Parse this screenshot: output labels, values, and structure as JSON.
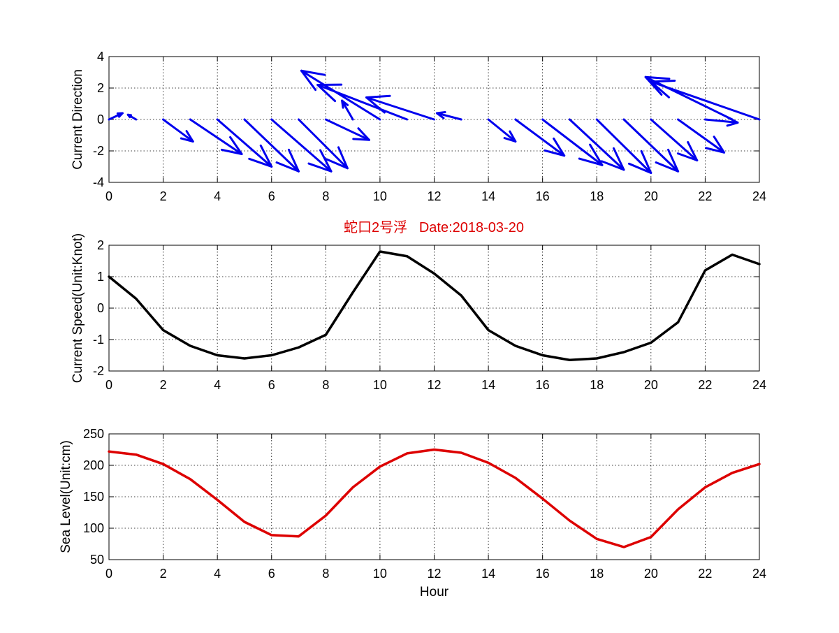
{
  "figure": {
    "title": "蛇口2号浮   Date:2018-03-20",
    "title_color": "#dd0000"
  },
  "chart_data": [
    {
      "type": "quiver",
      "id": "current-direction",
      "ylabel": "Current Direction",
      "xlabel": "",
      "xlim": [
        0,
        24
      ],
      "ylim": [
        -4,
        4
      ],
      "xticks": [
        0,
        2,
        4,
        6,
        8,
        10,
        12,
        14,
        16,
        18,
        20,
        22,
        24
      ],
      "yticks": [
        -4,
        -2,
        0,
        2,
        4
      ],
      "grid": true,
      "color": "#0000ee",
      "vectors": [
        {
          "x": 0,
          "u": 0.5,
          "v": 0.4
        },
        {
          "x": 1,
          "u": -0.3,
          "v": 0.3
        },
        {
          "x": 2,
          "u": 1.1,
          "v": -1.4
        },
        {
          "x": 3,
          "u": 1.9,
          "v": -2.2
        },
        {
          "x": 4,
          "u": 2.0,
          "v": -3.0
        },
        {
          "x": 5,
          "u": 2.0,
          "v": -3.3
        },
        {
          "x": 6,
          "u": 2.2,
          "v": -3.3
        },
        {
          "x": 7,
          "u": 1.8,
          "v": -3.1
        },
        {
          "x": 8,
          "u": 1.6,
          "v": -1.3
        },
        {
          "x": 9,
          "u": -0.4,
          "v": 1.2
        },
        {
          "x": 10,
          "u": -2.9,
          "v": 3.1
        },
        {
          "x": 11,
          "u": -3.3,
          "v": 2.2
        },
        {
          "x": 12,
          "u": -2.5,
          "v": 1.4
        },
        {
          "x": 13,
          "u": -0.9,
          "v": 0.4
        },
        {
          "x": 14,
          "u": 1.0,
          "v": -1.4
        },
        {
          "x": 15,
          "u": 1.8,
          "v": -2.3
        },
        {
          "x": 16,
          "u": 2.2,
          "v": -2.9
        },
        {
          "x": 17,
          "u": 2.0,
          "v": -3.2
        },
        {
          "x": 18,
          "u": 2.0,
          "v": -3.4
        },
        {
          "x": 19,
          "u": 2.0,
          "v": -3.3
        },
        {
          "x": 20,
          "u": 1.7,
          "v": -2.6
        },
        {
          "x": 21,
          "u": 1.7,
          "v": -2.1
        },
        {
          "x": 22,
          "u": 1.2,
          "v": -0.2
        },
        {
          "x": 23,
          "u": -3.2,
          "v": 2.7
        },
        {
          "x": 24,
          "u": -4.0,
          "v": 2.4
        }
      ]
    },
    {
      "type": "line",
      "id": "current-speed",
      "ylabel": "Current Speed(Unit:Knot)",
      "xlabel": "",
      "xlim": [
        0,
        24
      ],
      "ylim": [
        -2,
        2
      ],
      "xticks": [
        0,
        2,
        4,
        6,
        8,
        10,
        12,
        14,
        16,
        18,
        20,
        22,
        24
      ],
      "yticks": [
        -2,
        -1,
        0,
        1,
        2
      ],
      "grid": true,
      "color": "#000000",
      "x": [
        0,
        1,
        2,
        3,
        4,
        5,
        6,
        7,
        8,
        9,
        10,
        11,
        12,
        13,
        14,
        15,
        16,
        17,
        18,
        19,
        20,
        21,
        22,
        23,
        24
      ],
      "y": [
        1.0,
        0.3,
        -0.7,
        -1.2,
        -1.5,
        -1.6,
        -1.5,
        -1.25,
        -0.85,
        0.5,
        1.8,
        1.65,
        1.1,
        0.4,
        -0.7,
        -1.2,
        -1.5,
        -1.65,
        -1.6,
        -1.4,
        -1.1,
        -0.45,
        1.2,
        1.7,
        1.4
      ]
    },
    {
      "type": "line",
      "id": "sea-level",
      "ylabel": "Sea Level(Unit:cm)",
      "xlabel": "Hour",
      "xlim": [
        0,
        24
      ],
      "ylim": [
        50,
        250
      ],
      "xticks": [
        0,
        2,
        4,
        6,
        8,
        10,
        12,
        14,
        16,
        18,
        20,
        22,
        24
      ],
      "yticks": [
        50,
        100,
        150,
        200,
        250
      ],
      "grid": true,
      "color": "#dd0000",
      "x": [
        0,
        1,
        2,
        3,
        4,
        5,
        6,
        7,
        8,
        9,
        10,
        11,
        12,
        13,
        14,
        15,
        16,
        17,
        18,
        19,
        20,
        21,
        22,
        23,
        24
      ],
      "y": [
        222,
        217,
        202,
        178,
        145,
        110,
        89,
        87,
        120,
        165,
        198,
        219,
        225,
        220,
        204,
        180,
        147,
        112,
        83,
        70,
        86,
        130,
        165,
        188,
        202
      ]
    }
  ]
}
